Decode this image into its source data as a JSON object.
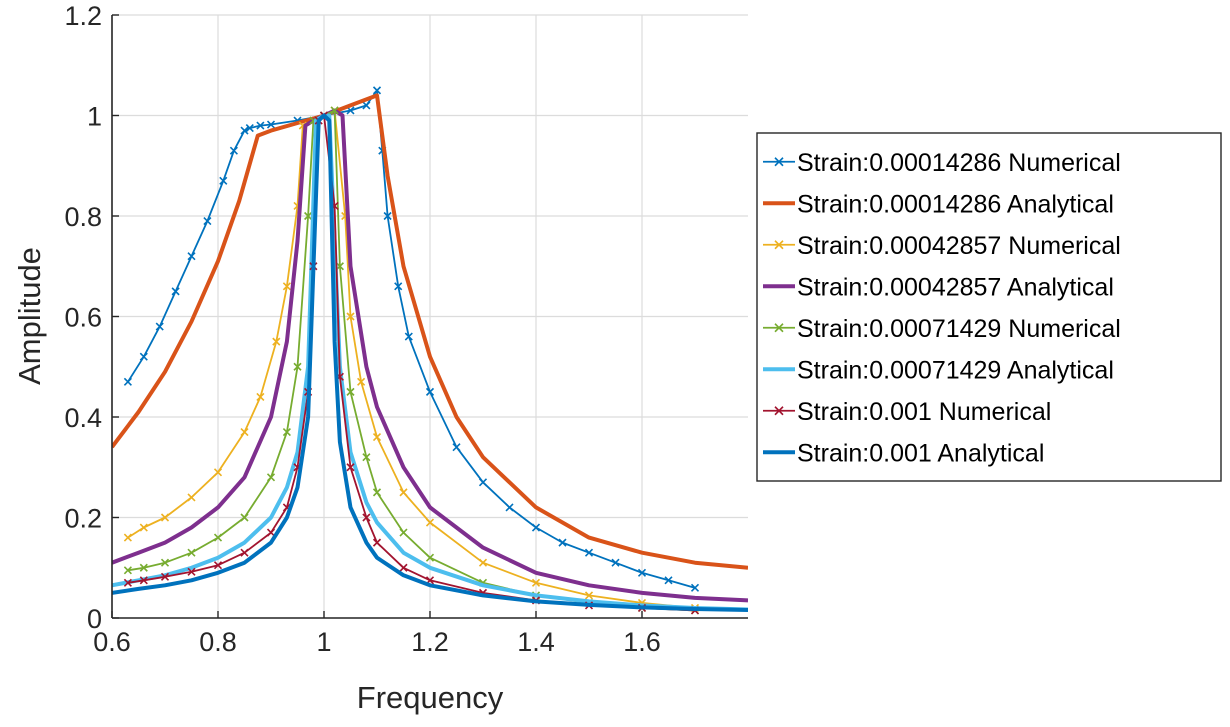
{
  "chart_data": {
    "type": "line",
    "title": "",
    "xlabel": "Frequency",
    "ylabel": "Amplitude",
    "xlim": [
      0.6,
      1.8
    ],
    "ylim": [
      0,
      1.2
    ],
    "xticks": [
      "0.6",
      "0.8",
      "1",
      "1.2",
      "1.4",
      "1.6"
    ],
    "yticks": [
      "0",
      "0.2",
      "0.4",
      "0.6",
      "0.8",
      "1",
      "1.2"
    ],
    "grid": true,
    "legend_position": "outside-right",
    "series": [
      {
        "name": "Strain:0.00014286 Numerical",
        "color": "#0072BD",
        "marker": "x",
        "x": [
          0.63,
          0.66,
          0.69,
          0.72,
          0.75,
          0.78,
          0.81,
          0.83,
          0.85,
          0.86,
          0.88,
          0.9,
          0.95,
          1.0,
          1.05,
          1.08,
          1.1,
          1.11,
          1.12,
          1.14,
          1.16,
          1.2,
          1.25,
          1.3,
          1.35,
          1.4,
          1.45,
          1.5,
          1.55,
          1.6,
          1.65,
          1.7
        ],
        "y": [
          0.47,
          0.52,
          0.58,
          0.65,
          0.72,
          0.79,
          0.87,
          0.93,
          0.97,
          0.975,
          0.98,
          0.982,
          0.99,
          1.0,
          1.01,
          1.02,
          1.05,
          0.93,
          0.8,
          0.66,
          0.56,
          0.45,
          0.34,
          0.27,
          0.22,
          0.18,
          0.15,
          0.13,
          0.11,
          0.09,
          0.075,
          0.06
        ]
      },
      {
        "name": "Strain:0.00014286 Analytical",
        "color": "#D95319",
        "marker": "none",
        "x": [
          0.6,
          0.65,
          0.7,
          0.75,
          0.8,
          0.84,
          0.875,
          0.9,
          0.95,
          1.0,
          1.05,
          1.1,
          1.12,
          1.15,
          1.2,
          1.25,
          1.3,
          1.4,
          1.5,
          1.6,
          1.7,
          1.8
        ],
        "y": [
          0.34,
          0.41,
          0.49,
          0.59,
          0.71,
          0.83,
          0.96,
          0.97,
          0.985,
          1.0,
          1.02,
          1.04,
          0.88,
          0.7,
          0.52,
          0.4,
          0.32,
          0.22,
          0.16,
          0.13,
          0.11,
          0.1
        ]
      },
      {
        "name": "Strain:0.00042857 Numerical",
        "color": "#EDB120",
        "marker": "x",
        "x": [
          0.63,
          0.66,
          0.7,
          0.75,
          0.8,
          0.85,
          0.88,
          0.91,
          0.93,
          0.95,
          0.96,
          0.98,
          1.0,
          1.02,
          1.04,
          1.05,
          1.07,
          1.1,
          1.15,
          1.2,
          1.3,
          1.4,
          1.5,
          1.6,
          1.7
        ],
        "y": [
          0.16,
          0.18,
          0.2,
          0.24,
          0.29,
          0.37,
          0.44,
          0.55,
          0.66,
          0.82,
          0.98,
          0.99,
          1.0,
          1.01,
          0.8,
          0.6,
          0.47,
          0.36,
          0.25,
          0.19,
          0.11,
          0.07,
          0.045,
          0.03,
          0.02
        ]
      },
      {
        "name": "Strain:0.00042857 Analytical",
        "color": "#7E2F8E",
        "marker": "none",
        "x": [
          0.6,
          0.65,
          0.7,
          0.75,
          0.8,
          0.85,
          0.9,
          0.93,
          0.95,
          0.965,
          0.98,
          1.0,
          1.02,
          1.035,
          1.05,
          1.08,
          1.1,
          1.15,
          1.2,
          1.3,
          1.4,
          1.5,
          1.6,
          1.7,
          1.8
        ],
        "y": [
          0.11,
          0.13,
          0.15,
          0.18,
          0.22,
          0.28,
          0.4,
          0.55,
          0.75,
          0.98,
          0.99,
          1.0,
          1.01,
          1.0,
          0.7,
          0.5,
          0.42,
          0.3,
          0.22,
          0.14,
          0.09,
          0.065,
          0.05,
          0.04,
          0.035
        ]
      },
      {
        "name": "Strain:0.00071429 Numerical",
        "color": "#77AC30",
        "marker": "x",
        "x": [
          0.63,
          0.66,
          0.7,
          0.75,
          0.8,
          0.85,
          0.9,
          0.93,
          0.95,
          0.97,
          0.98,
          1.0,
          1.02,
          1.03,
          1.05,
          1.08,
          1.1,
          1.15,
          1.2,
          1.3,
          1.4,
          1.5,
          1.6,
          1.7
        ],
        "y": [
          0.095,
          0.1,
          0.11,
          0.13,
          0.16,
          0.2,
          0.28,
          0.37,
          0.5,
          0.8,
          0.99,
          1.0,
          1.01,
          0.7,
          0.45,
          0.32,
          0.25,
          0.17,
          0.12,
          0.07,
          0.045,
          0.03,
          0.02,
          0.015
        ]
      },
      {
        "name": "Strain:0.00071429 Analytical",
        "color": "#4DBEEE",
        "marker": "none",
        "x": [
          0.6,
          0.65,
          0.7,
          0.75,
          0.8,
          0.85,
          0.9,
          0.93,
          0.95,
          0.97,
          0.985,
          1.0,
          1.01,
          1.02,
          1.03,
          1.05,
          1.08,
          1.1,
          1.15,
          1.2,
          1.3,
          1.4,
          1.5,
          1.6,
          1.7,
          1.8
        ],
        "y": [
          0.065,
          0.075,
          0.085,
          0.1,
          0.12,
          0.15,
          0.2,
          0.26,
          0.33,
          0.5,
          0.99,
          1.0,
          1.0,
          0.75,
          0.5,
          0.33,
          0.23,
          0.19,
          0.13,
          0.1,
          0.065,
          0.045,
          0.033,
          0.025,
          0.02,
          0.017
        ]
      },
      {
        "name": "Strain:0.001 Numerical",
        "color": "#A2142F",
        "marker": "x",
        "x": [
          0.63,
          0.66,
          0.7,
          0.75,
          0.8,
          0.85,
          0.9,
          0.93,
          0.95,
          0.97,
          0.98,
          0.99,
          1.0,
          1.02,
          1.03,
          1.05,
          1.08,
          1.1,
          1.15,
          1.2,
          1.3,
          1.4,
          1.5,
          1.6,
          1.7
        ],
        "y": [
          0.07,
          0.075,
          0.082,
          0.092,
          0.105,
          0.13,
          0.17,
          0.22,
          0.3,
          0.45,
          0.7,
          0.99,
          1.0,
          0.82,
          0.48,
          0.3,
          0.2,
          0.15,
          0.1,
          0.075,
          0.05,
          0.035,
          0.025,
          0.02,
          0.015
        ]
      },
      {
        "name": "Strain:0.001 Analytical",
        "color": "#0072BD",
        "marker": "none",
        "x": [
          0.6,
          0.65,
          0.7,
          0.75,
          0.8,
          0.85,
          0.9,
          0.93,
          0.95,
          0.97,
          0.99,
          1.0,
          1.01,
          1.02,
          1.03,
          1.05,
          1.08,
          1.1,
          1.15,
          1.2,
          1.3,
          1.4,
          1.5,
          1.6,
          1.7,
          1.8
        ],
        "y": [
          0.05,
          0.058,
          0.065,
          0.075,
          0.09,
          0.11,
          0.15,
          0.2,
          0.26,
          0.4,
          0.99,
          1.0,
          0.99,
          0.55,
          0.35,
          0.22,
          0.15,
          0.12,
          0.085,
          0.065,
          0.045,
          0.033,
          0.026,
          0.021,
          0.018,
          0.016
        ]
      }
    ]
  }
}
